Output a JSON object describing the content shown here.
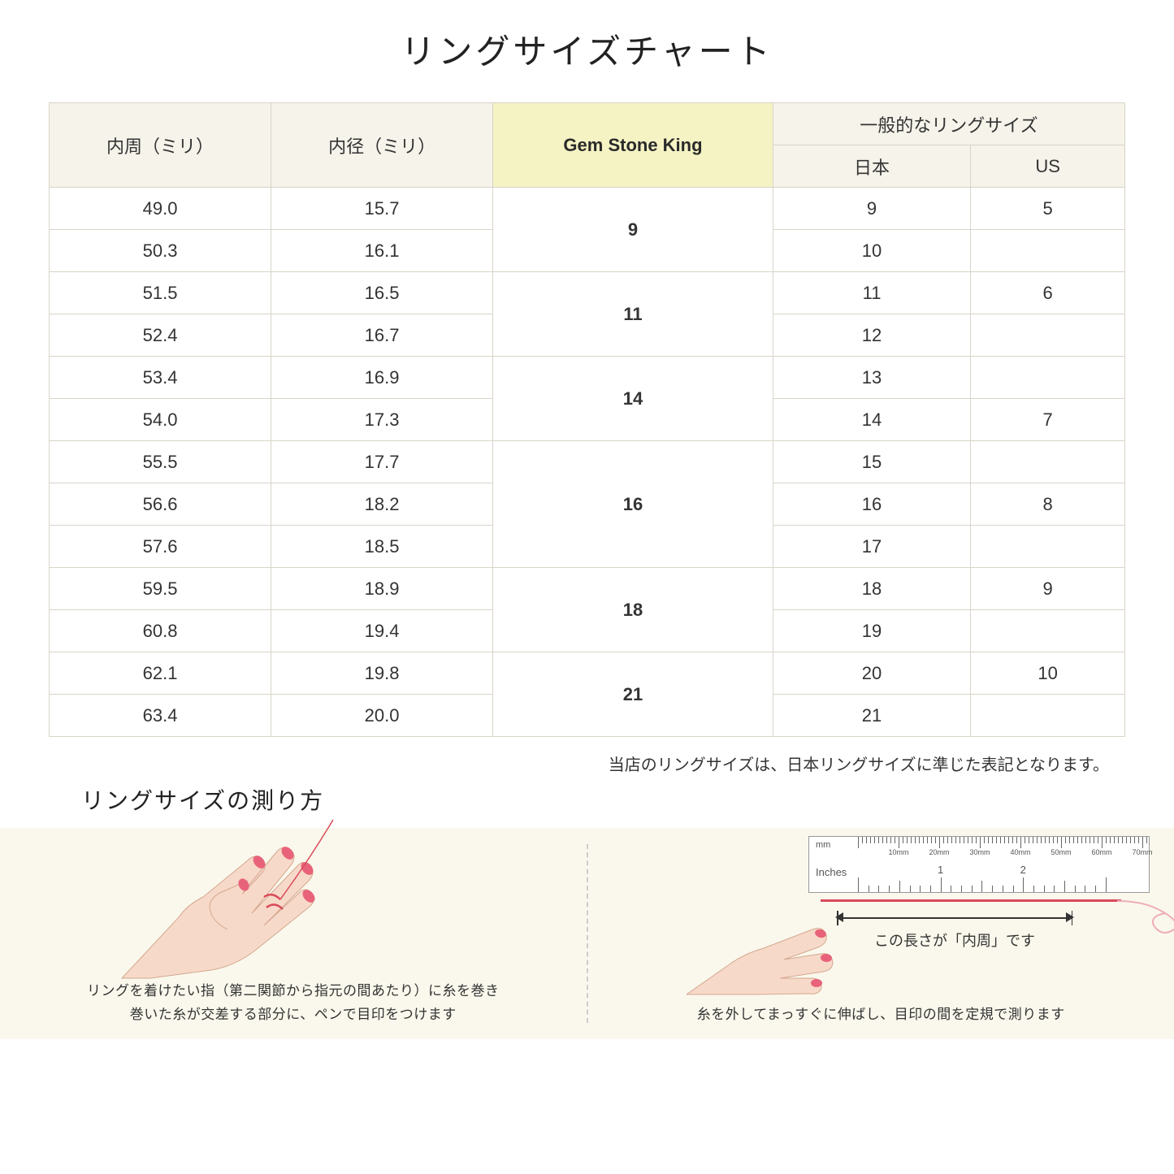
{
  "title": "リングサイズチャート",
  "headers": {
    "circumference": "内周（ミリ）",
    "diameter": "内径（ミリ）",
    "brand": "Gem Stone King",
    "general": "一般的なリングサイズ",
    "japan": "日本",
    "us": "US"
  },
  "rows": [
    {
      "circ": "49.0",
      "diam": "15.7",
      "jp": "9",
      "us": "5"
    },
    {
      "circ": "50.3",
      "diam": "16.1",
      "jp": "10",
      "us": ""
    },
    {
      "circ": "51.5",
      "diam": "16.5",
      "jp": "11",
      "us": "6"
    },
    {
      "circ": "52.4",
      "diam": "16.7",
      "jp": "12",
      "us": ""
    },
    {
      "circ": "53.4",
      "diam": "16.9",
      "jp": "13",
      "us": ""
    },
    {
      "circ": "54.0",
      "diam": "17.3",
      "jp": "14",
      "us": "7"
    },
    {
      "circ": "55.5",
      "diam": "17.7",
      "jp": "15",
      "us": ""
    },
    {
      "circ": "56.6",
      "diam": "18.2",
      "jp": "16",
      "us": "8"
    },
    {
      "circ": "57.6",
      "diam": "18.5",
      "jp": "17",
      "us": ""
    },
    {
      "circ": "59.5",
      "diam": "18.9",
      "jp": "18",
      "us": "9"
    },
    {
      "circ": "60.8",
      "diam": "19.4",
      "jp": "19",
      "us": ""
    },
    {
      "circ": "62.1",
      "diam": "19.8",
      "jp": "20",
      "us": "10"
    },
    {
      "circ": "63.4",
      "diam": "20.0",
      "jp": "21",
      "us": ""
    }
  ],
  "brand_groups": [
    {
      "label": "9",
      "span": 2
    },
    {
      "label": "11",
      "span": 2
    },
    {
      "label": "14",
      "span": 2
    },
    {
      "label": "16",
      "span": 3
    },
    {
      "label": "18",
      "span": 2
    },
    {
      "label": "21",
      "span": 2
    }
  ],
  "note": "当店のリングサイズは、日本リングサイズに準じた表記となります。",
  "howto_title": "リングサイズの測り方",
  "howto_left": "リングを着けたい指（第二関節から指元の間あたり）に糸を巻き\n巻いた糸が交差する部分に、ペンで目印をつけます",
  "howto_right": "糸を外してまっすぐに伸ばし、目印の間を定規で測ります",
  "ruler": {
    "mm_label": "mm",
    "in_label": "Inches",
    "mm_marks": [
      "10mm",
      "20mm",
      "30mm",
      "40mm",
      "50mm",
      "60mm",
      "70mm"
    ],
    "in_marks": [
      "1",
      "2"
    ]
  },
  "measure_label": "この長さが「内周」です",
  "colors": {
    "header_bg": "#f5f3ea",
    "highlight_bg": "#f5f3c4",
    "border": "#d8d4c8",
    "howto_bg": "#faf8ec",
    "skin": "#f7d9c9",
    "nail": "#e8637a",
    "thread": "#d94b5a"
  }
}
